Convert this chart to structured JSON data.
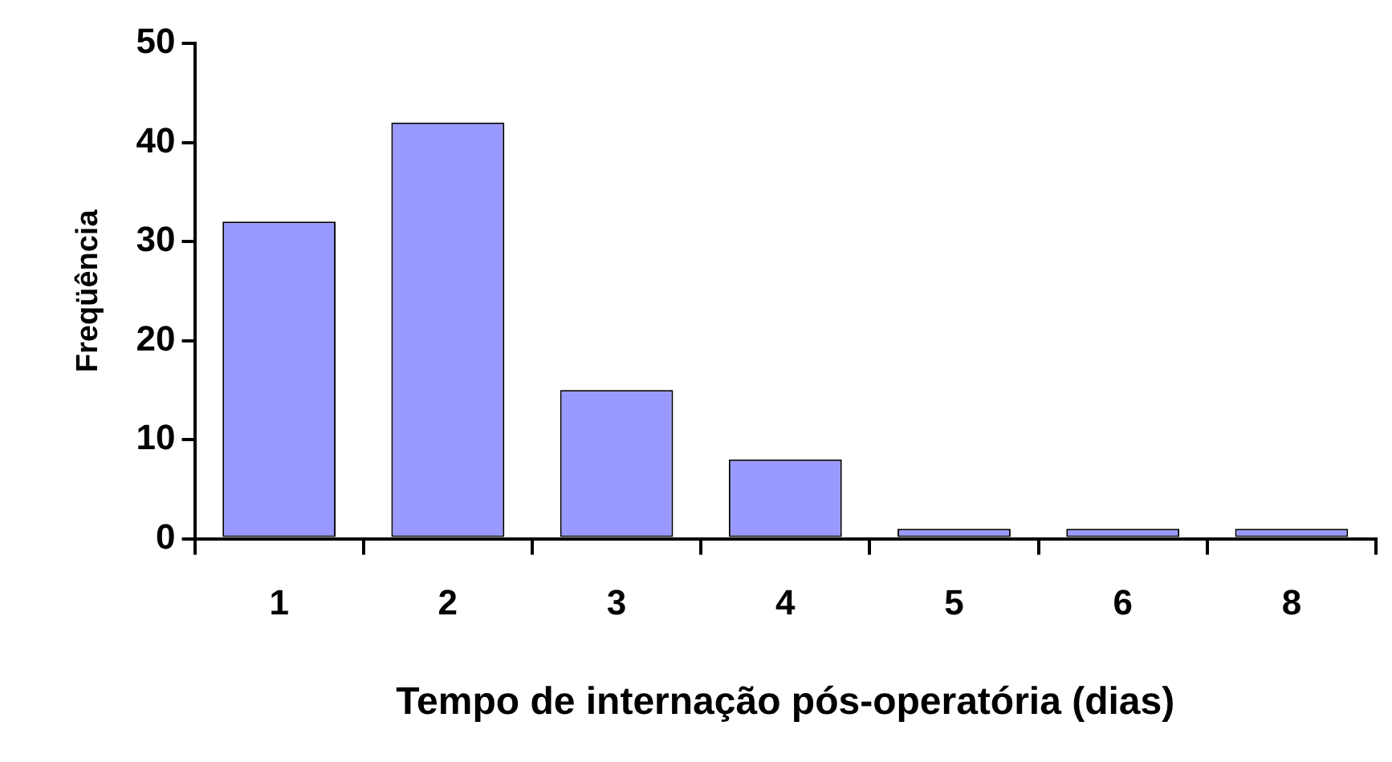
{
  "chart_data": {
    "type": "bar",
    "xlabel": "Tempo de internação pós-operatória (dias)",
    "ylabel": "Freqüência",
    "categories": [
      "1",
      "2",
      "3",
      "4",
      "5",
      "6",
      "8"
    ],
    "values": [
      32,
      42,
      15,
      8,
      1,
      1,
      1
    ],
    "color": "#9999ff",
    "ylim": [
      0,
      50
    ],
    "yticks": [
      0,
      10,
      20,
      30,
      40,
      50
    ],
    "grid": false,
    "legend": false
  }
}
